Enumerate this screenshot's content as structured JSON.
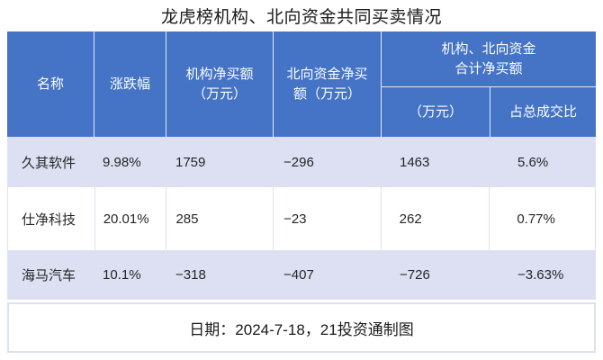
{
  "title": "龙虎榜机构、北向资金共同买卖情况",
  "colors": {
    "header_bg": "#4574c6",
    "header_text": "#fdfdfd",
    "band_bg": "#dce0f2",
    "body_text": "#262626"
  },
  "table": {
    "headers": {
      "name": "名称",
      "change": "涨跌幅",
      "inst_net_buy": "机构净买额\n（万元）",
      "north_net_buy": "北向资金净买\n额（万元）",
      "combined_group": "机构、北向资金\n合计净买额",
      "combined_amount": "（万元）",
      "combined_ratio": "占总成交比"
    },
    "rows": [
      [
        "久其软件",
        "9.98%",
        "1759",
        "−296",
        "1463",
        "5.6%"
      ],
      [
        "仕净科技",
        "20.01%",
        "285",
        "−23",
        "262",
        "0.77%"
      ],
      [
        "海马汽车",
        "10.1%",
        "−318",
        "−407",
        "−726",
        "−3.63%"
      ]
    ]
  },
  "footer": "日期：2024-7-18，21投资通制图",
  "chart_data": {
    "type": "table",
    "title": "龙虎榜机构、北向资金共同买卖情况",
    "columns": [
      "名称",
      "涨跌幅",
      "机构净买额（万元）",
      "北向资金净买额（万元）",
      "机构、北向资金合计净买额（万元）",
      "机构、北向资金合计净买额占总成交比"
    ],
    "rows": [
      {
        "name": "久其软件",
        "change_pct": 9.98,
        "inst_net_buy_wan": 1759,
        "north_net_buy_wan": -296,
        "combined_net_buy_wan": 1463,
        "share_of_turnover_pct": 5.6
      },
      {
        "name": "仕净科技",
        "change_pct": 20.01,
        "inst_net_buy_wan": 285,
        "north_net_buy_wan": -23,
        "combined_net_buy_wan": 262,
        "share_of_turnover_pct": 0.77
      },
      {
        "name": "海马汽车",
        "change_pct": 10.1,
        "inst_net_buy_wan": -318,
        "north_net_buy_wan": -407,
        "combined_net_buy_wan": -726,
        "share_of_turnover_pct": -3.63
      }
    ],
    "note": "日期：2024-7-18，21投资通制图"
  }
}
